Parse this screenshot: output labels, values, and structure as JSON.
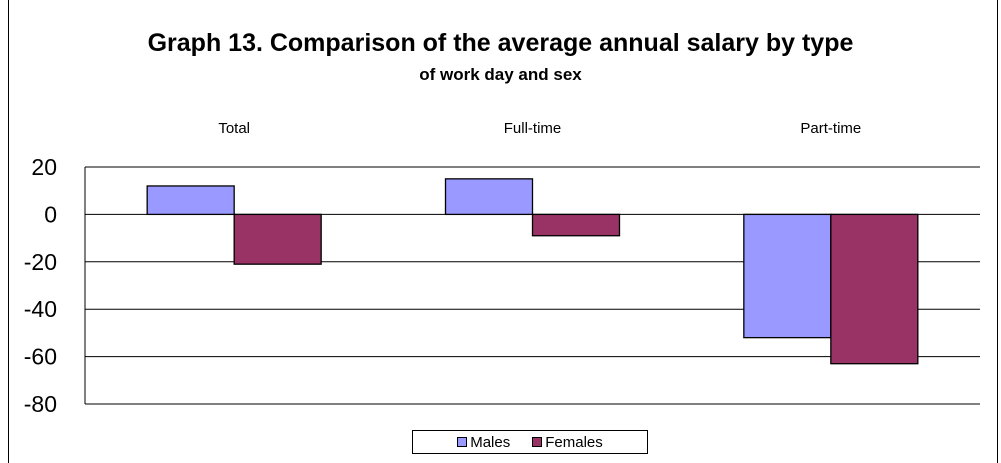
{
  "chart_data": {
    "type": "bar",
    "title": "Graph 13. Comparison of the average annual salary by type",
    "subtitle": "of work day and sex",
    "categories": [
      "Total",
      "Full-time",
      "Part-time"
    ],
    "series": [
      {
        "name": "Males",
        "values": [
          12,
          15,
          -52
        ],
        "color": "#9999ff"
      },
      {
        "name": "Females",
        "values": [
          -21,
          -9,
          -63
        ],
        "color": "#993366"
      }
    ],
    "ylim": [
      -80,
      20
    ],
    "yticks": [
      "20",
      "0",
      "-20",
      "-40",
      "-60",
      "-80"
    ],
    "ytick_values": [
      20,
      0,
      -20,
      -40,
      -60,
      -80
    ],
    "grid": true,
    "legend": "bottom"
  }
}
